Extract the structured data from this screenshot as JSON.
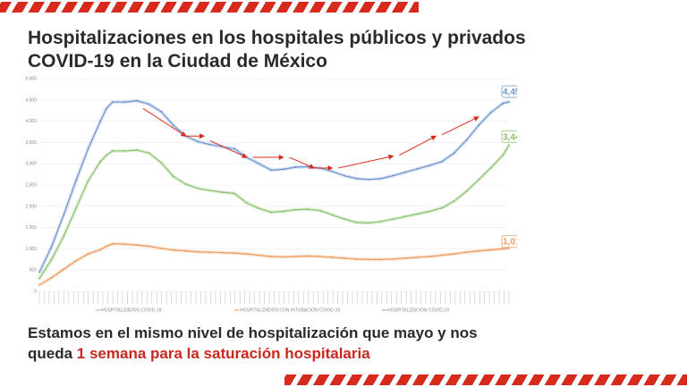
{
  "title": {
    "line1": "Hospitalizaciones en los hospitales públicos y privados",
    "line2": "COVID-19 en la Ciudad de México"
  },
  "footnote": {
    "part1": "Estamos en el mismo nivel de hospitalización que mayo y nos",
    "part2": "queda ",
    "highlight": "1 semana para la saturación hospitalaria"
  },
  "colors": {
    "accent": "#d72a1d",
    "highlight": "#c9281d",
    "total": "#6f95cf",
    "general": "#8cc270",
    "intubated": "#ee9a5c"
  },
  "chart_data": {
    "type": "line",
    "title": "",
    "xlabel": "",
    "ylabel": "",
    "ylim": [
      0,
      5000
    ],
    "yticks": [
      0,
      500,
      1000,
      1500,
      2000,
      2500,
      3000,
      3500,
      4000,
      4500,
      5000
    ],
    "ytick_labels": [
      "0",
      "500",
      "1,000",
      "1,500",
      "2,000",
      "2,500",
      "3,000",
      "3,500",
      "4,000",
      "4,500",
      "5,000"
    ],
    "legend": [
      "HOSPITALIZADOS COVID-19",
      "HOSPITALIZADOS CON INTUBACIÓN COVID-19",
      "HOSPITALIZACIÓN COVID-19"
    ],
    "series": [
      {
        "name": "HOSPITALIZACIÓN COVID-19",
        "color": "#6f95cf",
        "last_label": "4,454",
        "x": [
          0,
          10,
          20,
          30,
          40,
          50,
          55,
          60,
          70,
          80,
          90,
          100,
          110,
          120,
          130,
          140,
          150,
          160,
          170,
          180,
          190,
          200,
          210,
          220,
          230,
          240,
          250,
          260,
          270,
          280,
          290,
          300,
          310,
          320,
          330,
          340,
          350,
          360,
          370,
          380,
          385
        ],
        "values": [
          450,
          1050,
          1800,
          2600,
          3350,
          4000,
          4300,
          4450,
          4450,
          4480,
          4400,
          4220,
          3900,
          3650,
          3520,
          3450,
          3400,
          3350,
          3150,
          3000,
          2850,
          2870,
          2920,
          2930,
          2900,
          2820,
          2720,
          2650,
          2630,
          2650,
          2720,
          2800,
          2880,
          2960,
          3050,
          3250,
          3550,
          3900,
          4200,
          4420,
          4454
        ]
      },
      {
        "name": "HOSPITALIZADOS COVID-19",
        "color": "#8cc270",
        "last_label": "3,440",
        "x": [
          0,
          10,
          20,
          30,
          40,
          50,
          55,
          60,
          70,
          80,
          90,
          100,
          110,
          120,
          130,
          140,
          150,
          160,
          170,
          180,
          190,
          200,
          210,
          220,
          230,
          240,
          250,
          260,
          270,
          280,
          290,
          300,
          310,
          320,
          330,
          340,
          350,
          360,
          370,
          380,
          385
        ],
        "values": [
          300,
          750,
          1300,
          1950,
          2600,
          3050,
          3200,
          3300,
          3300,
          3320,
          3250,
          3020,
          2700,
          2520,
          2420,
          2370,
          2330,
          2300,
          2080,
          1950,
          1860,
          1880,
          1920,
          1930,
          1900,
          1800,
          1700,
          1620,
          1610,
          1640,
          1700,
          1760,
          1820,
          1880,
          1960,
          2120,
          2350,
          2620,
          2900,
          3200,
          3440
        ]
      },
      {
        "name": "HOSPITALIZADOS CON INTUBACIÓN COVID-19",
        "color": "#ee9a5c",
        "last_label": "1,014",
        "x": [
          0,
          10,
          20,
          30,
          40,
          50,
          55,
          60,
          70,
          80,
          90,
          100,
          110,
          120,
          130,
          140,
          150,
          160,
          170,
          180,
          190,
          200,
          210,
          220,
          230,
          240,
          250,
          260,
          270,
          280,
          290,
          300,
          310,
          320,
          330,
          340,
          350,
          360,
          370,
          380,
          385
        ],
        "values": [
          150,
          320,
          520,
          720,
          880,
          980,
          1060,
          1120,
          1110,
          1090,
          1060,
          1010,
          970,
          950,
          930,
          920,
          910,
          900,
          880,
          850,
          820,
          810,
          820,
          830,
          820,
          800,
          780,
          760,
          750,
          750,
          760,
          780,
          800,
          820,
          850,
          880,
          920,
          950,
          975,
          1000,
          1014
        ]
      }
    ],
    "annotations": [
      {
        "type": "arrow",
        "from": [
          85,
          4300
        ],
        "to": [
          120,
          3650
        ]
      },
      {
        "type": "arrow",
        "from": [
          120,
          3650
        ],
        "to": [
          135,
          3650
        ]
      },
      {
        "type": "arrow",
        "from": [
          140,
          3540
        ],
        "to": [
          170,
          3150
        ]
      },
      {
        "type": "arrow",
        "from": [
          175,
          3150
        ],
        "to": [
          200,
          3150
        ]
      },
      {
        "type": "arrow",
        "from": [
          205,
          3150
        ],
        "to": [
          225,
          2900
        ]
      },
      {
        "type": "arrow",
        "from": [
          225,
          2900
        ],
        "to": [
          240,
          2900
        ]
      },
      {
        "type": "arrow",
        "from": [
          245,
          2900
        ],
        "to": [
          290,
          3180
        ]
      },
      {
        "type": "arrow",
        "from": [
          295,
          3200
        ],
        "to": [
          325,
          3650
        ]
      },
      {
        "type": "arrow",
        "from": [
          330,
          3680
        ],
        "to": [
          360,
          4100
        ]
      }
    ]
  }
}
